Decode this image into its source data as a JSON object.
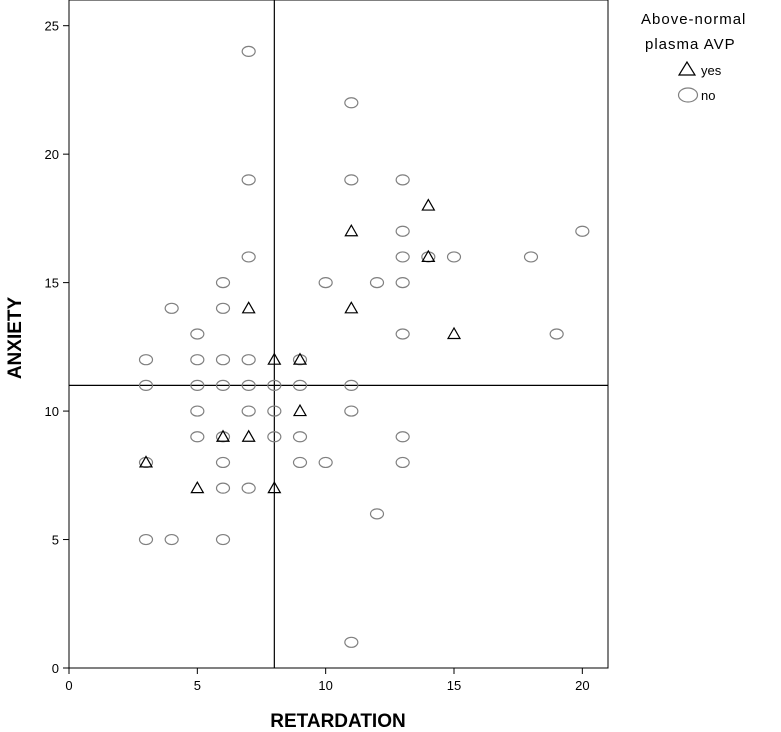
{
  "chart_data": {
    "type": "scatter",
    "xlabel": "RETARDATION",
    "ylabel": "ANXIETY",
    "xlim": [
      0,
      21
    ],
    "ylim": [
      0,
      26
    ],
    "x_ticks": [
      0,
      5,
      10,
      15,
      20
    ],
    "y_ticks": [
      0,
      5,
      10,
      15,
      20,
      25
    ],
    "reference_lines": {
      "x": 8,
      "y": 11
    },
    "legend": {
      "title_line1": "Above-normal",
      "title_line2": "plasma AVP",
      "placement": "top-right outside plot",
      "entries": [
        {
          "label": "yes",
          "marker": "triangle",
          "color": "#000000"
        },
        {
          "label": "no",
          "marker": "ellipse",
          "color": "#808080"
        }
      ]
    },
    "series": [
      {
        "name": "no",
        "marker": "ellipse",
        "color": "#808080",
        "points": [
          [
            7,
            24
          ],
          [
            11,
            22
          ],
          [
            7,
            19
          ],
          [
            11,
            19
          ],
          [
            13,
            19
          ],
          [
            13,
            17
          ],
          [
            20,
            17
          ],
          [
            7,
            16
          ],
          [
            13,
            16
          ],
          [
            14,
            16
          ],
          [
            15,
            16
          ],
          [
            18,
            16
          ],
          [
            6,
            15
          ],
          [
            10,
            15
          ],
          [
            12,
            15
          ],
          [
            13,
            15
          ],
          [
            4,
            14
          ],
          [
            6,
            14
          ],
          [
            5,
            13
          ],
          [
            13,
            13
          ],
          [
            19,
            13
          ],
          [
            3,
            12
          ],
          [
            5,
            12
          ],
          [
            6,
            12
          ],
          [
            7,
            12
          ],
          [
            9,
            12
          ],
          [
            3,
            11
          ],
          [
            5,
            11
          ],
          [
            6,
            11
          ],
          [
            7,
            11
          ],
          [
            8,
            11
          ],
          [
            9,
            11
          ],
          [
            11,
            11
          ],
          [
            5,
            10
          ],
          [
            7,
            10
          ],
          [
            8,
            10
          ],
          [
            11,
            10
          ],
          [
            5,
            9
          ],
          [
            6,
            9
          ],
          [
            8,
            9
          ],
          [
            9,
            9
          ],
          [
            13,
            9
          ],
          [
            3,
            8
          ],
          [
            6,
            8
          ],
          [
            9,
            8
          ],
          [
            10,
            8
          ],
          [
            13,
            8
          ],
          [
            6,
            7
          ],
          [
            7,
            7
          ],
          [
            12,
            6
          ],
          [
            3,
            5
          ],
          [
            4,
            5
          ],
          [
            6,
            5
          ],
          [
            11,
            1
          ]
        ]
      },
      {
        "name": "yes",
        "marker": "triangle",
        "color": "#000000",
        "points": [
          [
            14,
            18
          ],
          [
            11,
            17
          ],
          [
            14,
            16
          ],
          [
            7,
            14
          ],
          [
            11,
            14
          ],
          [
            15,
            13
          ],
          [
            8,
            12
          ],
          [
            9,
            12
          ],
          [
            9,
            10
          ],
          [
            6,
            9
          ],
          [
            7,
            9
          ],
          [
            3,
            8
          ],
          [
            5,
            7
          ],
          [
            8,
            7
          ]
        ]
      }
    ]
  }
}
